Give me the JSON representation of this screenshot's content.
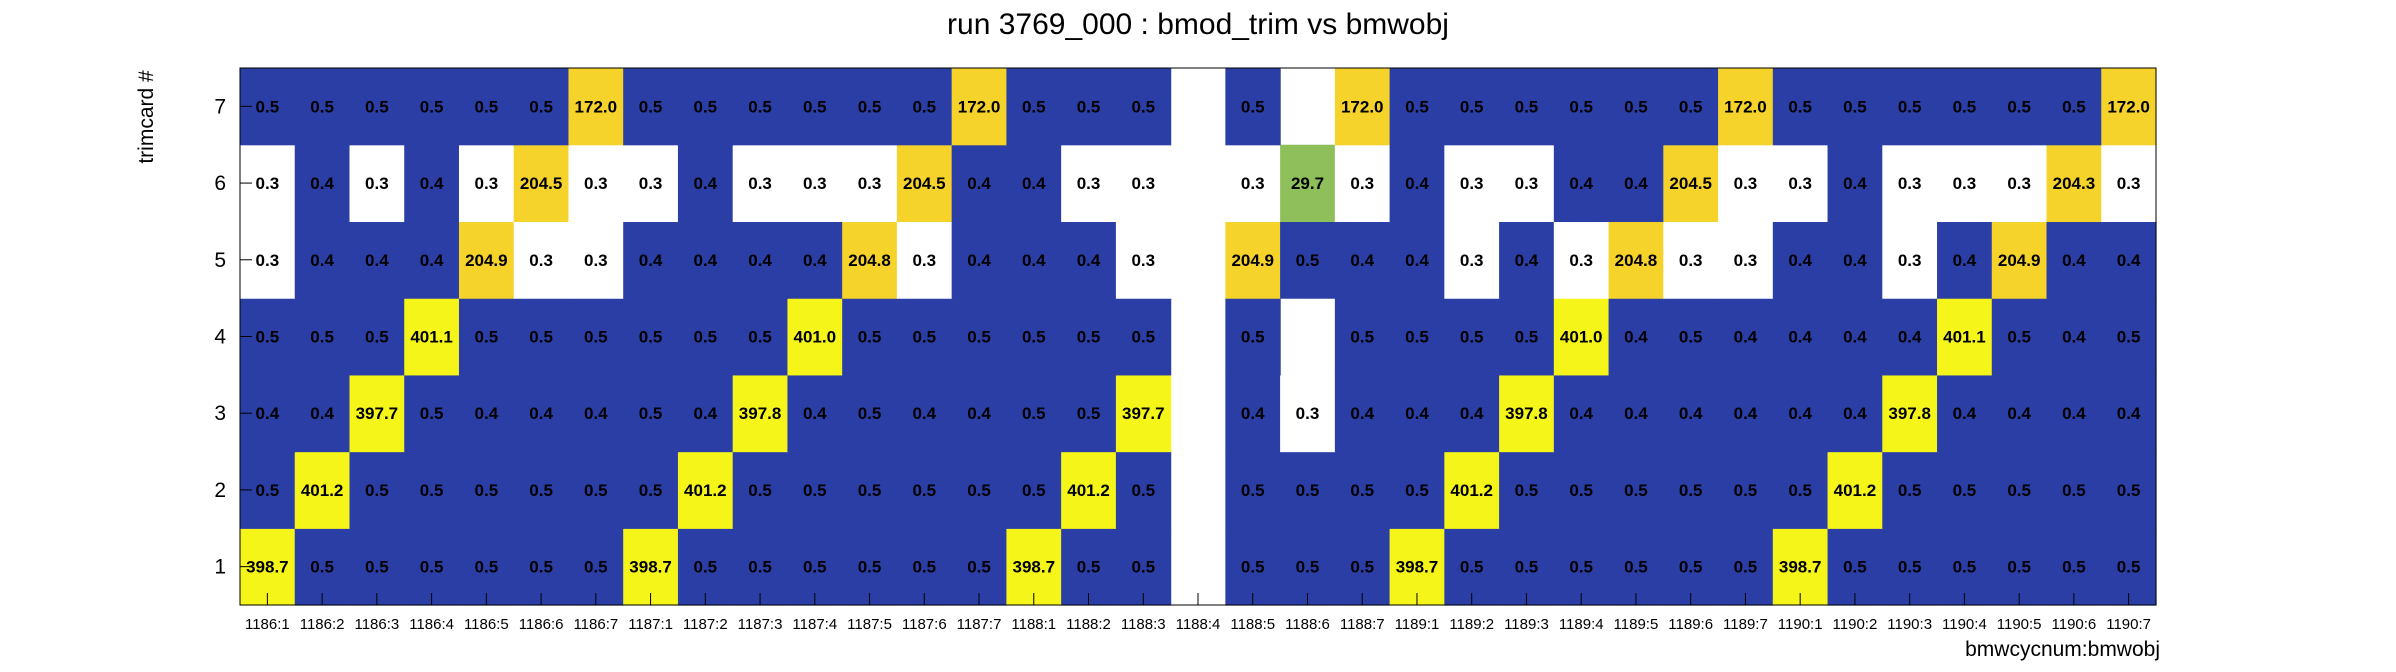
{
  "chart_data": {
    "type": "heatmap",
    "title": "run 3769_000 : bmod_trim vs bmwobj",
    "xlabel": "bmwcycnum:bmwobj",
    "ylabel": "trimcard #",
    "x_categories": [
      "1186:1",
      "1186:2",
      "1186:3",
      "1186:4",
      "1186:5",
      "1186:6",
      "1186:7",
      "1187:1",
      "1187:2",
      "1187:3",
      "1187:4",
      "1187:5",
      "1187:6",
      "1187:7",
      "1188:1",
      "1188:2",
      "1188:3",
      "1188:4",
      "1188:5",
      "1188:6",
      "1188:7",
      "1189:1",
      "1189:2",
      "1189:3",
      "1189:4",
      "1189:5",
      "1189:6",
      "1189:7",
      "1190:1",
      "1190:2",
      "1190:3",
      "1190:4",
      "1190:5",
      "1190:6",
      "1190:7"
    ],
    "y_categories": [
      "1",
      "2",
      "3",
      "4",
      "5",
      "6",
      "7"
    ],
    "grid": false,
    "palette": {
      "blue": "#2a3ea6",
      "yellow": "#f5f51a",
      "gold": "#f6d32a",
      "green": "#8fbf5a",
      "empty": "#ffffff",
      "frame": "#000000"
    },
    "rows": [
      {
        "trimcard": 1,
        "values": [
          398.7,
          0.5,
          0.5,
          0.5,
          0.5,
          0.5,
          0.5,
          398.7,
          0.5,
          0.5,
          0.5,
          0.5,
          0.5,
          0.5,
          398.7,
          0.5,
          0.5,
          null,
          0.5,
          0.5,
          0.5,
          398.7,
          0.5,
          0.5,
          0.5,
          0.5,
          0.5,
          0.5,
          398.7,
          0.5,
          0.5,
          0.5,
          0.5,
          0.5,
          0.5
        ]
      },
      {
        "trimcard": 2,
        "values": [
          0.5,
          401.2,
          0.5,
          0.5,
          0.5,
          0.5,
          0.5,
          0.5,
          401.2,
          0.5,
          0.5,
          0.5,
          0.5,
          0.5,
          0.5,
          401.2,
          0.5,
          null,
          0.5,
          0.5,
          0.5,
          0.5,
          401.2,
          0.5,
          0.5,
          0.5,
          0.5,
          0.5,
          0.5,
          401.2,
          0.5,
          0.5,
          0.5,
          0.5,
          0.5
        ]
      },
      {
        "trimcard": 3,
        "values": [
          0.4,
          0.4,
          397.7,
          0.5,
          0.4,
          0.4,
          0.4,
          0.5,
          0.4,
          397.8,
          0.4,
          0.5,
          0.4,
          0.4,
          0.5,
          0.5,
          397.7,
          null,
          0.4,
          0.3,
          0.4,
          0.4,
          0.4,
          397.8,
          0.4,
          0.4,
          0.4,
          0.4,
          0.4,
          0.4,
          397.8,
          0.4,
          0.4,
          0.4,
          0.4
        ]
      },
      {
        "trimcard": 4,
        "values": [
          0.5,
          0.5,
          0.5,
          401.1,
          0.5,
          0.5,
          0.5,
          0.5,
          0.5,
          0.5,
          401.0,
          0.5,
          0.5,
          0.5,
          0.5,
          0.5,
          0.5,
          null,
          0.5,
          null,
          0.5,
          0.5,
          0.5,
          0.5,
          401.0,
          0.4,
          0.5,
          0.4,
          0.4,
          0.4,
          0.4,
          401.1,
          0.5,
          0.4,
          0.5
        ]
      },
      {
        "trimcard": 5,
        "values": [
          0.3,
          0.4,
          0.4,
          0.4,
          204.9,
          0.3,
          0.3,
          0.4,
          0.4,
          0.4,
          0.4,
          204.8,
          0.3,
          0.4,
          0.4,
          0.4,
          0.3,
          null,
          204.9,
          0.5,
          0.4,
          0.4,
          0.3,
          0.4,
          0.3,
          204.8,
          0.3,
          0.3,
          0.4,
          0.4,
          0.3,
          0.4,
          204.9,
          0.4,
          0.4
        ]
      },
      {
        "trimcard": 6,
        "values": [
          0.3,
          0.4,
          0.3,
          0.4,
          0.3,
          204.5,
          0.3,
          0.3,
          0.4,
          0.3,
          0.3,
          0.3,
          204.5,
          0.4,
          0.4,
          0.3,
          0.3,
          null,
          0.3,
          29.7,
          0.3,
          0.4,
          0.3,
          0.3,
          0.4,
          0.4,
          204.5,
          0.3,
          0.3,
          0.4,
          0.3,
          0.3,
          0.3,
          204.3,
          0.3
        ]
      },
      {
        "trimcard": 7,
        "values": [
          0.5,
          0.5,
          0.5,
          0.5,
          0.5,
          0.5,
          172.0,
          0.5,
          0.5,
          0.5,
          0.5,
          0.5,
          0.5,
          172.0,
          0.5,
          0.5,
          0.5,
          null,
          0.5,
          null,
          172.0,
          0.5,
          0.5,
          0.5,
          0.5,
          0.5,
          0.5,
          172.0,
          0.5,
          0.5,
          0.5,
          0.5,
          0.5,
          0.5,
          172.0
        ]
      }
    ]
  }
}
